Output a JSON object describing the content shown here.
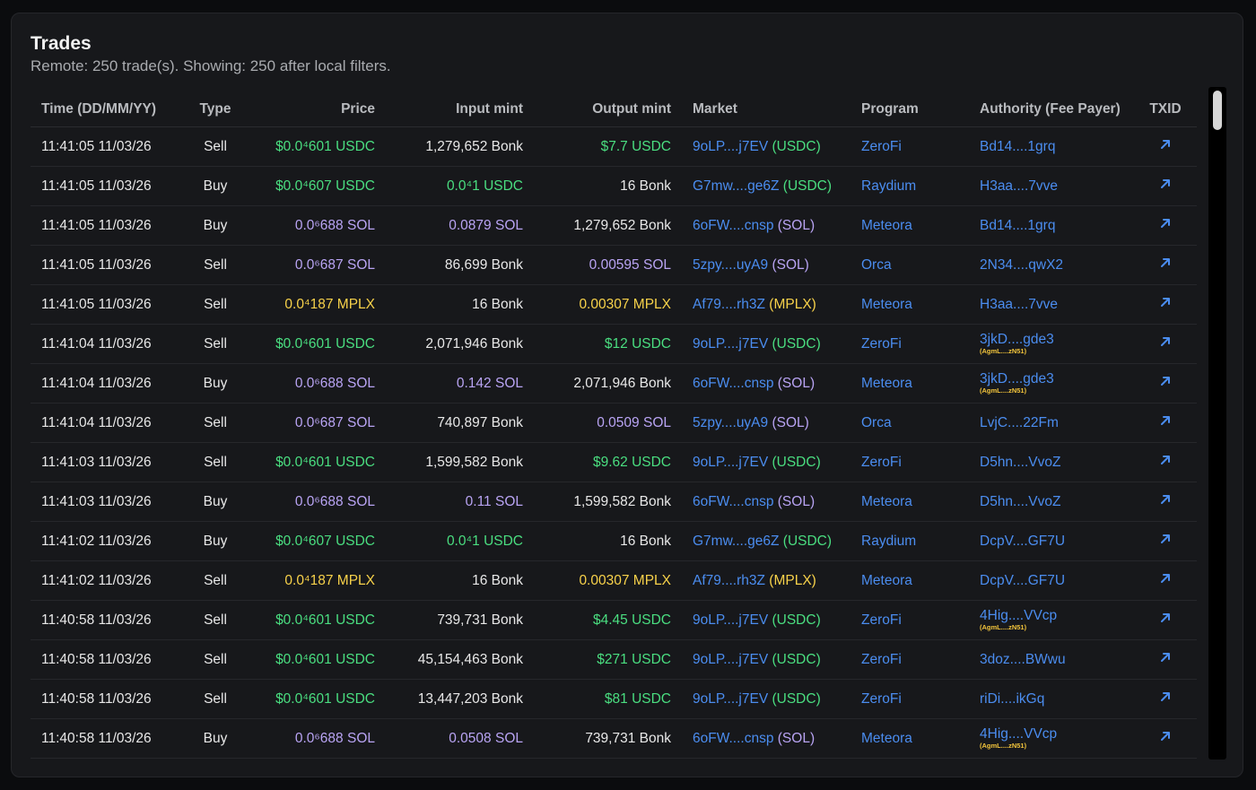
{
  "panel": {
    "title": "Trades",
    "subtitle": "Remote: 250 trade(s). Showing: 250 after local filters."
  },
  "columns": [
    "Time (DD/MM/YY)",
    "Type",
    "Price",
    "Input mint",
    "Output mint",
    "Market",
    "Program",
    "Authority (Fee Payer)",
    "TXID"
  ],
  "colors": {
    "green": "#4ade80",
    "purple": "#b9a4f4",
    "yellow": "#f8d24a",
    "blue": "#4b8df0",
    "panel_bg": "#17181b"
  },
  "rows": [
    {
      "time": "11:41:05 11/03/26",
      "type": "Sell",
      "price": "$0.0⁴601",
      "price_unit": "USDC",
      "price_color": "green",
      "input": "1,279,652",
      "input_unit": "Bonk",
      "input_color": "white",
      "output": "$7.7",
      "output_unit": "USDC",
      "output_color": "green",
      "market": "9oLP....j7EV",
      "market_quote": "(USDC)",
      "program": "ZeroFi",
      "authority": "Bd14....1grq",
      "authority_sub": "",
      "txid_icon": "external-link-icon"
    },
    {
      "time": "11:41:05 11/03/26",
      "type": "Buy",
      "price": "$0.0⁴607",
      "price_unit": "USDC",
      "price_color": "green",
      "input": "0.0⁴1",
      "input_unit": "USDC",
      "input_color": "green",
      "output": "16",
      "output_unit": "Bonk",
      "output_color": "white",
      "market": "G7mw....ge6Z",
      "market_quote": "(USDC)",
      "program": "Raydium",
      "authority": "H3aa....7vve",
      "authority_sub": "",
      "txid_icon": "external-link-icon"
    },
    {
      "time": "11:41:05 11/03/26",
      "type": "Buy",
      "price": "0.0⁶688",
      "price_unit": "SOL",
      "price_color": "purple",
      "input": "0.0879",
      "input_unit": "SOL",
      "input_color": "purple",
      "output": "1,279,652",
      "output_unit": "Bonk",
      "output_color": "white",
      "market": "6oFW....cnsp",
      "market_quote": "(SOL)",
      "program": "Meteora",
      "authority": "Bd14....1grq",
      "authority_sub": "",
      "txid_icon": "external-link-icon"
    },
    {
      "time": "11:41:05 11/03/26",
      "type": "Sell",
      "price": "0.0⁶687",
      "price_unit": "SOL",
      "price_color": "purple",
      "input": "86,699",
      "input_unit": "Bonk",
      "input_color": "white",
      "output": "0.00595",
      "output_unit": "SOL",
      "output_color": "purple",
      "market": "5zpy....uyA9",
      "market_quote": "(SOL)",
      "program": "Orca",
      "authority": "2N34....qwX2",
      "authority_sub": "",
      "txid_icon": "external-link-icon"
    },
    {
      "time": "11:41:05 11/03/26",
      "type": "Sell",
      "price": "0.0⁴187",
      "price_unit": "MPLX",
      "price_color": "yellow",
      "input": "16",
      "input_unit": "Bonk",
      "input_color": "white",
      "output": "0.00307",
      "output_unit": "MPLX",
      "output_color": "yellow",
      "market": "Af79....rh3Z",
      "market_quote": "(MPLX)",
      "program": "Meteora",
      "authority": "H3aa....7vve",
      "authority_sub": "",
      "txid_icon": "external-link-icon"
    },
    {
      "time": "11:41:04 11/03/26",
      "type": "Sell",
      "price": "$0.0⁴601",
      "price_unit": "USDC",
      "price_color": "green",
      "input": "2,071,946",
      "input_unit": "Bonk",
      "input_color": "white",
      "output": "$12",
      "output_unit": "USDC",
      "output_color": "green",
      "market": "9oLP....j7EV",
      "market_quote": "(USDC)",
      "program": "ZeroFi",
      "authority": "3jkD....gde3",
      "authority_sub": "(AgmL....zN51)",
      "txid_icon": "external-link-icon"
    },
    {
      "time": "11:41:04 11/03/26",
      "type": "Buy",
      "price": "0.0⁶688",
      "price_unit": "SOL",
      "price_color": "purple",
      "input": "0.142",
      "input_unit": "SOL",
      "input_color": "purple",
      "output": "2,071,946",
      "output_unit": "Bonk",
      "output_color": "white",
      "market": "6oFW....cnsp",
      "market_quote": "(SOL)",
      "program": "Meteora",
      "authority": "3jkD....gde3",
      "authority_sub": "(AgmL....zN51)",
      "txid_icon": "external-link-icon"
    },
    {
      "time": "11:41:04 11/03/26",
      "type": "Sell",
      "price": "0.0⁶687",
      "price_unit": "SOL",
      "price_color": "purple",
      "input": "740,897",
      "input_unit": "Bonk",
      "input_color": "white",
      "output": "0.0509",
      "output_unit": "SOL",
      "output_color": "purple",
      "market": "5zpy....uyA9",
      "market_quote": "(SOL)",
      "program": "Orca",
      "authority": "LvjC....22Fm",
      "authority_sub": "",
      "txid_icon": "external-link-icon"
    },
    {
      "time": "11:41:03 11/03/26",
      "type": "Sell",
      "price": "$0.0⁴601",
      "price_unit": "USDC",
      "price_color": "green",
      "input": "1,599,582",
      "input_unit": "Bonk",
      "input_color": "white",
      "output": "$9.62",
      "output_unit": "USDC",
      "output_color": "green",
      "market": "9oLP....j7EV",
      "market_quote": "(USDC)",
      "program": "ZeroFi",
      "authority": "D5hn....VvoZ",
      "authority_sub": "",
      "txid_icon": "external-link-icon"
    },
    {
      "time": "11:41:03 11/03/26",
      "type": "Buy",
      "price": "0.0⁶688",
      "price_unit": "SOL",
      "price_color": "purple",
      "input": "0.11",
      "input_unit": "SOL",
      "input_color": "purple",
      "output": "1,599,582",
      "output_unit": "Bonk",
      "output_color": "white",
      "market": "6oFW....cnsp",
      "market_quote": "(SOL)",
      "program": "Meteora",
      "authority": "D5hn....VvoZ",
      "authority_sub": "",
      "txid_icon": "external-link-icon"
    },
    {
      "time": "11:41:02 11/03/26",
      "type": "Buy",
      "price": "$0.0⁴607",
      "price_unit": "USDC",
      "price_color": "green",
      "input": "0.0⁴1",
      "input_unit": "USDC",
      "input_color": "green",
      "output": "16",
      "output_unit": "Bonk",
      "output_color": "white",
      "market": "G7mw....ge6Z",
      "market_quote": "(USDC)",
      "program": "Raydium",
      "authority": "DcpV....GF7U",
      "authority_sub": "",
      "txid_icon": "external-link-icon"
    },
    {
      "time": "11:41:02 11/03/26",
      "type": "Sell",
      "price": "0.0⁴187",
      "price_unit": "MPLX",
      "price_color": "yellow",
      "input": "16",
      "input_unit": "Bonk",
      "input_color": "white",
      "output": "0.00307",
      "output_unit": "MPLX",
      "output_color": "yellow",
      "market": "Af79....rh3Z",
      "market_quote": "(MPLX)",
      "program": "Meteora",
      "authority": "DcpV....GF7U",
      "authority_sub": "",
      "txid_icon": "external-link-icon"
    },
    {
      "time": "11:40:58 11/03/26",
      "type": "Sell",
      "price": "$0.0⁴601",
      "price_unit": "USDC",
      "price_color": "green",
      "input": "739,731",
      "input_unit": "Bonk",
      "input_color": "white",
      "output": "$4.45",
      "output_unit": "USDC",
      "output_color": "green",
      "market": "9oLP....j7EV",
      "market_quote": "(USDC)",
      "program": "ZeroFi",
      "authority": "4Hig....VVcp",
      "authority_sub": "(AgmL....zN51)",
      "txid_icon": "external-link-icon"
    },
    {
      "time": "11:40:58 11/03/26",
      "type": "Sell",
      "price": "$0.0⁴601",
      "price_unit": "USDC",
      "price_color": "green",
      "input": "45,154,463",
      "input_unit": "Bonk",
      "input_color": "white",
      "output": "$271",
      "output_unit": "USDC",
      "output_color": "green",
      "market": "9oLP....j7EV",
      "market_quote": "(USDC)",
      "program": "ZeroFi",
      "authority": "3doz....BWwu",
      "authority_sub": "",
      "txid_icon": "external-link-icon"
    },
    {
      "time": "11:40:58 11/03/26",
      "type": "Sell",
      "price": "$0.0⁴601",
      "price_unit": "USDC",
      "price_color": "green",
      "input": "13,447,203",
      "input_unit": "Bonk",
      "input_color": "white",
      "output": "$81",
      "output_unit": "USDC",
      "output_color": "green",
      "market": "9oLP....j7EV",
      "market_quote": "(USDC)",
      "program": "ZeroFi",
      "authority": "riDi....ikGq",
      "authority_sub": "",
      "txid_icon": "external-link-icon"
    },
    {
      "time": "11:40:58 11/03/26",
      "type": "Buy",
      "price": "0.0⁶688",
      "price_unit": "SOL",
      "price_color": "purple",
      "input": "0.0508",
      "input_unit": "SOL",
      "input_color": "purple",
      "output": "739,731",
      "output_unit": "Bonk",
      "output_color": "white",
      "market": "6oFW....cnsp",
      "market_quote": "(SOL)",
      "program": "Meteora",
      "authority": "4Hig....VVcp",
      "authority_sub": "(AgmL....zN51)",
      "txid_icon": "external-link-icon"
    }
  ]
}
